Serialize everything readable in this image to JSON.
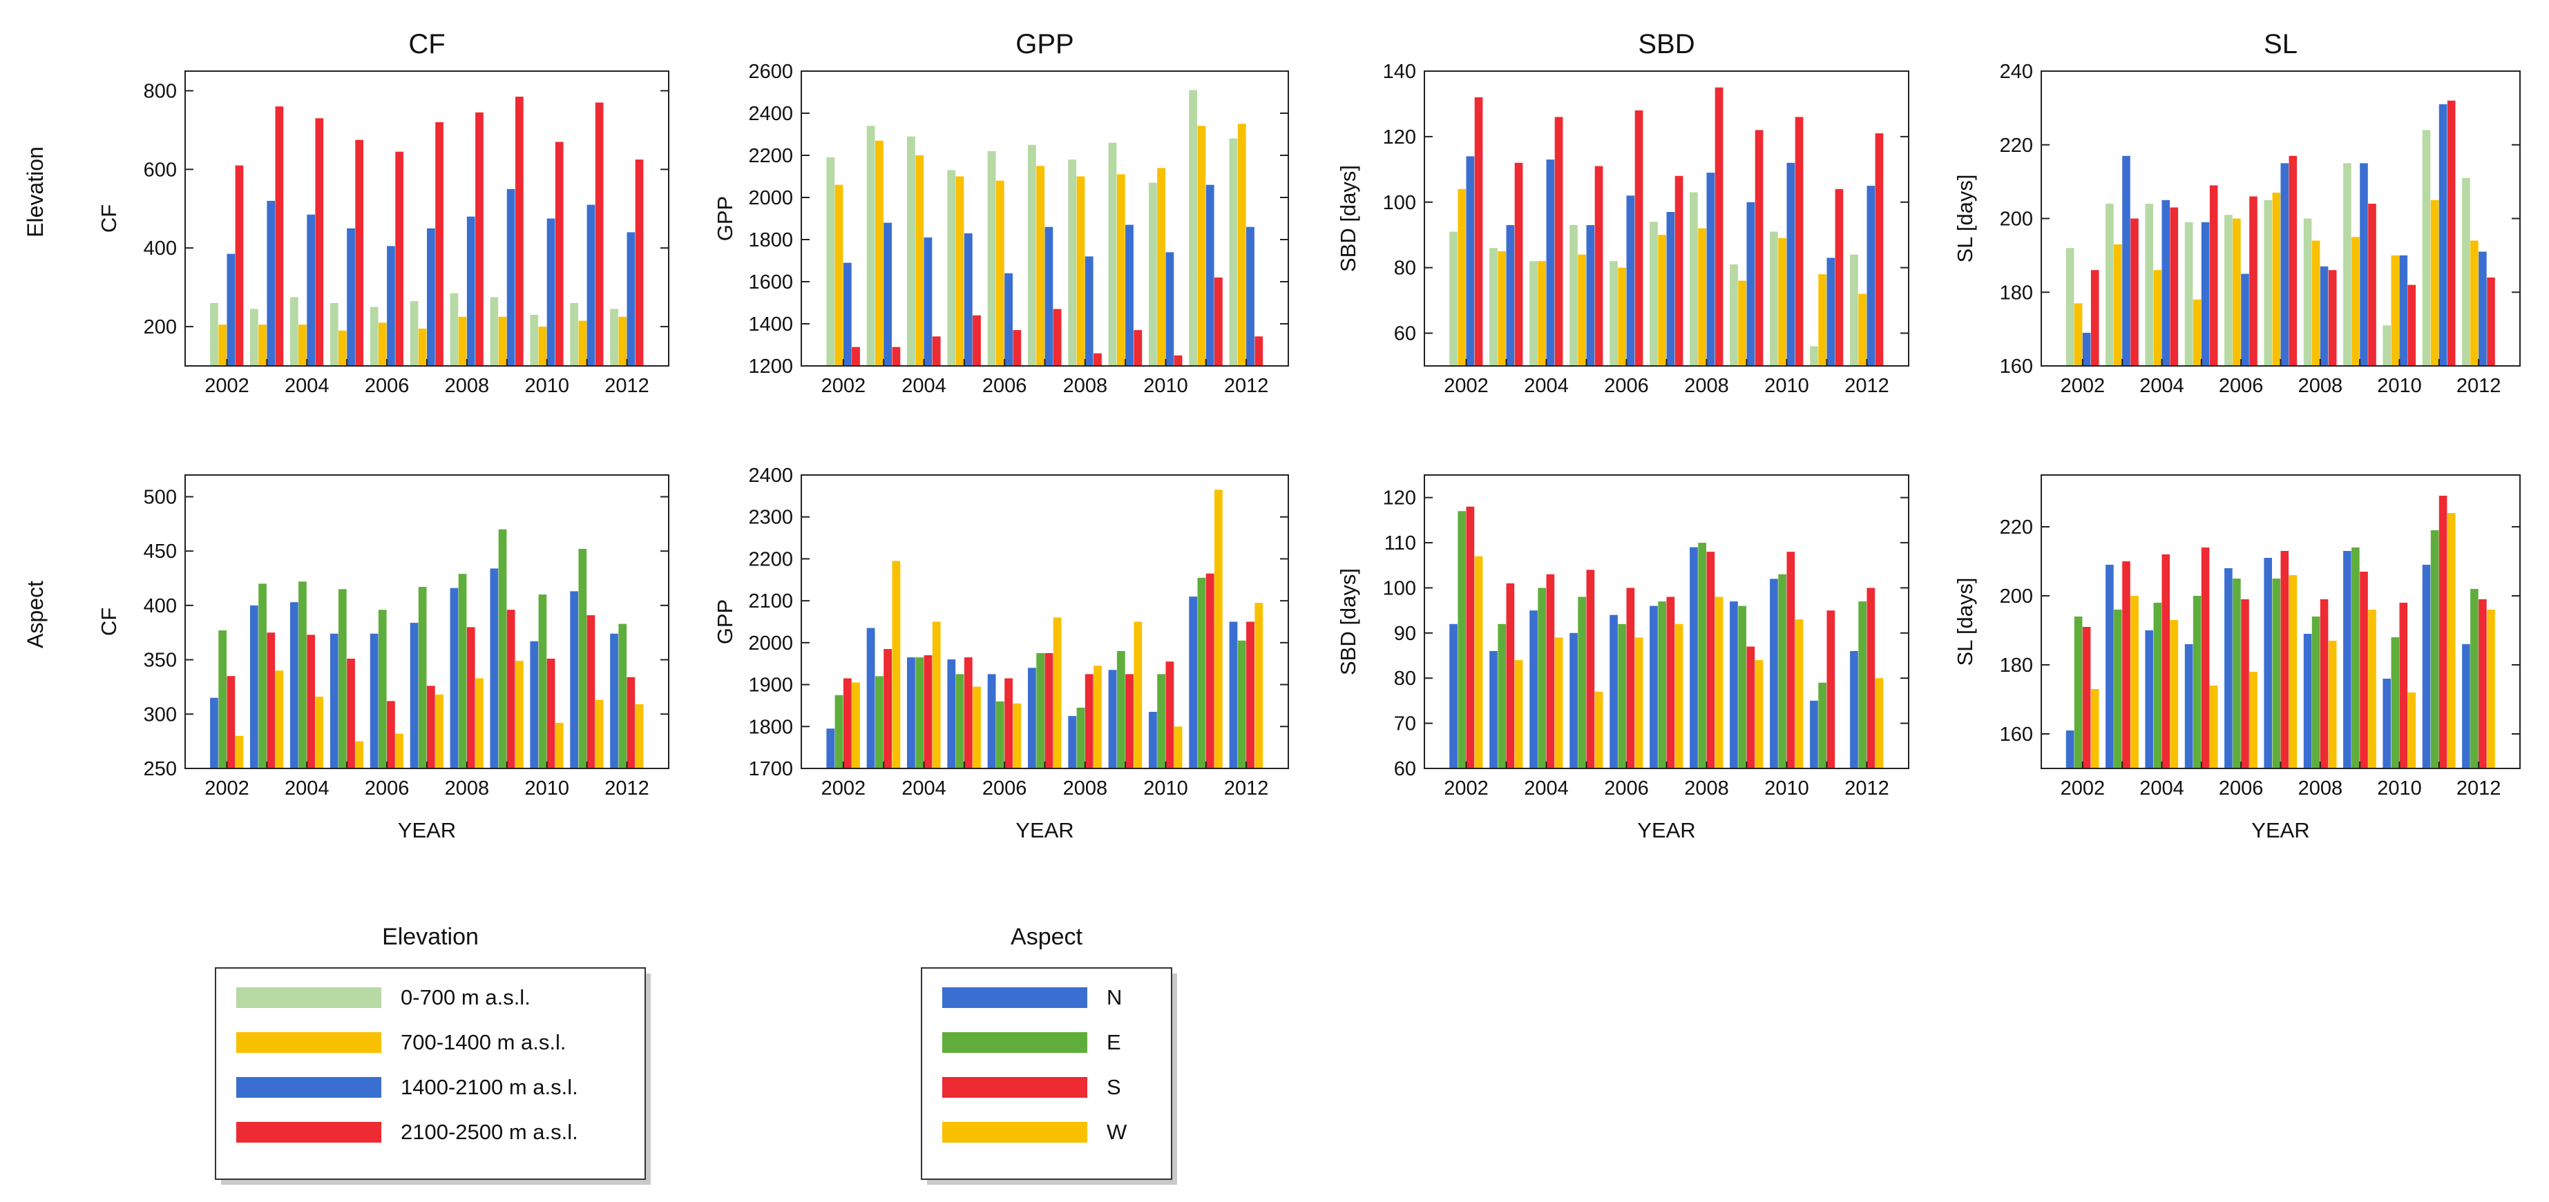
{
  "figure": {
    "row_labels": [
      "Elevation",
      "Aspect"
    ],
    "x_axis_label": "YEAR"
  },
  "legends": [
    {
      "title": "Elevation",
      "items": [
        {
          "label": "0-700 m a.s.l.",
          "color": "#b7d9a4"
        },
        {
          "label": "700-1400 m a.s.l.",
          "color": "#f9c000"
        },
        {
          "label": "1400-2100 m a.s.l.",
          "color": "#3a6fd1"
        },
        {
          "label": "2100-2500 m a.s.l.",
          "color": "#ee2a32"
        }
      ]
    },
    {
      "title": "Aspect",
      "items": [
        {
          "label": "N",
          "color": "#3a6fd1"
        },
        {
          "label": "E",
          "color": "#5fae3c"
        },
        {
          "label": "S",
          "color": "#ee2a32"
        },
        {
          "label": "W",
          "color": "#f9c000"
        }
      ]
    }
  ],
  "chart_data": [
    {
      "id": "elev-cf",
      "type": "bar",
      "title": "CF",
      "ylabel": "CF",
      "xlabel": "",
      "ylim": [
        100,
        850
      ],
      "yticks": [
        200,
        400,
        600,
        800
      ],
      "categories": [
        2002,
        2003,
        2004,
        2005,
        2006,
        2007,
        2008,
        2009,
        2010,
        2011,
        2012
      ],
      "xtick_labels": [
        "2002",
        "2004",
        "2006",
        "2008",
        "2010",
        "2012"
      ],
      "series": [
        {
          "name": "0-700 m a.s.l.",
          "color": "#b7d9a4",
          "values": [
            260,
            245,
            275,
            260,
            250,
            265,
            285,
            275,
            230,
            260,
            245
          ]
        },
        {
          "name": "700-1400 m a.s.l.",
          "color": "#f9c000",
          "values": [
            205,
            205,
            205,
            190,
            210,
            195,
            225,
            225,
            200,
            215,
            225
          ]
        },
        {
          "name": "1400-2100 m a.s.l.",
          "color": "#3a6fd1",
          "values": [
            385,
            520,
            485,
            450,
            405,
            450,
            480,
            550,
            475,
            510,
            440
          ]
        },
        {
          "name": "2100-2500 m a.s.l.",
          "color": "#ee2a32",
          "values": [
            610,
            760,
            730,
            675,
            645,
            720,
            745,
            785,
            670,
            770,
            625
          ]
        }
      ]
    },
    {
      "id": "elev-gpp",
      "type": "bar",
      "title": "GPP",
      "ylabel": "GPP",
      "xlabel": "",
      "ylim": [
        1200,
        2600
      ],
      "yticks": [
        1200,
        1400,
        1600,
        1800,
        2000,
        2200,
        2400,
        2600
      ],
      "categories": [
        2002,
        2003,
        2004,
        2005,
        2006,
        2007,
        2008,
        2009,
        2010,
        2011,
        2012
      ],
      "xtick_labels": [
        "2002",
        "2004",
        "2006",
        "2008",
        "2010",
        "2012"
      ],
      "series": [
        {
          "name": "0-700 m a.s.l.",
          "color": "#b7d9a4",
          "values": [
            2190,
            2340,
            2290,
            2130,
            2220,
            2250,
            2180,
            2260,
            2070,
            2510,
            2280
          ]
        },
        {
          "name": "700-1400 m a.s.l.",
          "color": "#f9c000",
          "values": [
            2060,
            2270,
            2200,
            2100,
            2080,
            2150,
            2100,
            2110,
            2140,
            2340,
            2350
          ]
        },
        {
          "name": "1400-2100 m a.s.l.",
          "color": "#3a6fd1",
          "values": [
            1690,
            1880,
            1810,
            1830,
            1640,
            1860,
            1720,
            1870,
            1740,
            2060,
            1860
          ]
        },
        {
          "name": "2100-2500 m a.s.l.",
          "color": "#ee2a32",
          "values": [
            1290,
            1290,
            1340,
            1440,
            1370,
            1470,
            1260,
            1370,
            1250,
            1620,
            1340
          ]
        }
      ]
    },
    {
      "id": "elev-sbd",
      "type": "bar",
      "title": "SBD",
      "ylabel": "SBD [days]",
      "xlabel": "",
      "ylim": [
        50,
        140
      ],
      "yticks": [
        60,
        80,
        100,
        120,
        140
      ],
      "categories": [
        2002,
        2003,
        2004,
        2005,
        2006,
        2007,
        2008,
        2009,
        2010,
        2011,
        2012
      ],
      "xtick_labels": [
        "2002",
        "2004",
        "2006",
        "2008",
        "2010",
        "2012"
      ],
      "series": [
        {
          "name": "0-700 m a.s.l.",
          "color": "#b7d9a4",
          "values": [
            91,
            86,
            82,
            93,
            82,
            94,
            103,
            81,
            91,
            56,
            84
          ]
        },
        {
          "name": "700-1400 m a.s.l.",
          "color": "#f9c000",
          "values": [
            104,
            85,
            82,
            84,
            80,
            90,
            92,
            76,
            89,
            78,
            72
          ]
        },
        {
          "name": "1400-2100 m a.s.l.",
          "color": "#3a6fd1",
          "values": [
            114,
            93,
            113,
            93,
            102,
            97,
            109,
            100,
            112,
            83,
            105
          ]
        },
        {
          "name": "2100-2500 m a.s.l.",
          "color": "#ee2a32",
          "values": [
            132,
            112,
            126,
            111,
            128,
            108,
            135,
            122,
            126,
            104,
            121
          ]
        }
      ]
    },
    {
      "id": "elev-sl",
      "type": "bar",
      "title": "SL",
      "ylabel": "SL [days]",
      "xlabel": "",
      "ylim": [
        160,
        240
      ],
      "yticks": [
        160,
        180,
        200,
        220,
        240
      ],
      "categories": [
        2002,
        2003,
        2004,
        2005,
        2006,
        2007,
        2008,
        2009,
        2010,
        2011,
        2012
      ],
      "xtick_labels": [
        "2002",
        "2004",
        "2006",
        "2008",
        "2010",
        "2012"
      ],
      "series": [
        {
          "name": "0-700 m a.s.l.",
          "color": "#b7d9a4",
          "values": [
            192,
            204,
            204,
            199,
            201,
            205,
            200,
            215,
            171,
            224,
            211
          ]
        },
        {
          "name": "700-1400 m a.s.l.",
          "color": "#f9c000",
          "values": [
            177,
            193,
            186,
            178,
            200,
            207,
            194,
            195,
            190,
            205,
            194
          ]
        },
        {
          "name": "1400-2100 m a.s.l.",
          "color": "#3a6fd1",
          "values": [
            169,
            217,
            205,
            199,
            185,
            215,
            187,
            215,
            190,
            231,
            191
          ]
        },
        {
          "name": "2100-2500 m a.s.l.",
          "color": "#ee2a32",
          "values": [
            186,
            200,
            203,
            209,
            206,
            217,
            186,
            204,
            182,
            232,
            184
          ]
        }
      ]
    },
    {
      "id": "asp-cf",
      "type": "bar",
      "title": "",
      "ylabel": "CF",
      "xlabel": "YEAR",
      "ylim": [
        250,
        520
      ],
      "yticks": [
        250,
        300,
        350,
        400,
        450,
        500
      ],
      "categories": [
        2002,
        2003,
        2004,
        2005,
        2006,
        2007,
        2008,
        2009,
        2010,
        2011,
        2012
      ],
      "xtick_labels": [
        "2002",
        "2004",
        "2006",
        "2008",
        "2010",
        "2012"
      ],
      "series": [
        {
          "name": "N",
          "color": "#3a6fd1",
          "values": [
            315,
            400,
            403,
            374,
            374,
            384,
            416,
            434,
            367,
            413,
            374
          ]
        },
        {
          "name": "E",
          "color": "#5fae3c",
          "values": [
            377,
            420,
            422,
            415,
            396,
            417,
            429,
            470,
            410,
            452,
            383
          ]
        },
        {
          "name": "S",
          "color": "#ee2a32",
          "values": [
            335,
            375,
            373,
            351,
            312,
            326,
            380,
            396,
            351,
            391,
            334
          ]
        },
        {
          "name": "W",
          "color": "#f9c000",
          "values": [
            280,
            340,
            316,
            275,
            282,
            318,
            333,
            349,
            292,
            313,
            309
          ]
        }
      ]
    },
    {
      "id": "asp-gpp",
      "type": "bar",
      "title": "",
      "ylabel": "GPP",
      "xlabel": "YEAR",
      "ylim": [
        1700,
        2400
      ],
      "yticks": [
        1700,
        1800,
        1900,
        2000,
        2100,
        2200,
        2300,
        2400
      ],
      "categories": [
        2002,
        2003,
        2004,
        2005,
        2006,
        2007,
        2008,
        2009,
        2010,
        2011,
        2012
      ],
      "xtick_labels": [
        "2002",
        "2004",
        "2006",
        "2008",
        "2010",
        "2012"
      ],
      "series": [
        {
          "name": "N",
          "color": "#3a6fd1",
          "values": [
            1795,
            2035,
            1965,
            1960,
            1925,
            1940,
            1825,
            1935,
            1835,
            2110,
            2050
          ]
        },
        {
          "name": "E",
          "color": "#5fae3c",
          "values": [
            1875,
            1920,
            1965,
            1925,
            1860,
            1975,
            1845,
            1980,
            1925,
            2155,
            2005
          ]
        },
        {
          "name": "S",
          "color": "#ee2a32",
          "values": [
            1915,
            1985,
            1970,
            1965,
            1915,
            1975,
            1925,
            1925,
            1955,
            2165,
            2050
          ]
        },
        {
          "name": "W",
          "color": "#f9c000",
          "values": [
            1905,
            2195,
            2050,
            1895,
            1855,
            2060,
            1945,
            2050,
            1800,
            2365,
            2095
          ]
        }
      ]
    },
    {
      "id": "asp-sbd",
      "type": "bar",
      "title": "",
      "ylabel": "SBD [days]",
      "xlabel": "YEAR",
      "ylim": [
        60,
        125
      ],
      "yticks": [
        60,
        70,
        80,
        90,
        100,
        110,
        120
      ],
      "categories": [
        2002,
        2003,
        2004,
        2005,
        2006,
        2007,
        2008,
        2009,
        2010,
        2011,
        2012
      ],
      "xtick_labels": [
        "2002",
        "2004",
        "2006",
        "2008",
        "2010",
        "2012"
      ],
      "series": [
        {
          "name": "N",
          "color": "#3a6fd1",
          "values": [
            92,
            86,
            95,
            90,
            94,
            96,
            109,
            97,
            102,
            75,
            86
          ]
        },
        {
          "name": "E",
          "color": "#5fae3c",
          "values": [
            117,
            92,
            100,
            98,
            92,
            97,
            110,
            96,
            103,
            79,
            97
          ]
        },
        {
          "name": "S",
          "color": "#ee2a32",
          "values": [
            118,
            101,
            103,
            104,
            100,
            98,
            108,
            87,
            108,
            95,
            100
          ]
        },
        {
          "name": "W",
          "color": "#f9c000",
          "values": [
            107,
            84,
            89,
            77,
            89,
            92,
            98,
            84,
            93,
            60,
            80
          ]
        }
      ]
    },
    {
      "id": "asp-sl",
      "type": "bar",
      "title": "",
      "ylabel": "SL [days]",
      "xlabel": "YEAR",
      "ylim": [
        150,
        235
      ],
      "yticks": [
        160,
        180,
        200,
        220
      ],
      "categories": [
        2002,
        2003,
        2004,
        2005,
        2006,
        2007,
        2008,
        2009,
        2010,
        2011,
        2012
      ],
      "xtick_labels": [
        "2002",
        "2004",
        "2006",
        "2008",
        "2010",
        "2012"
      ],
      "series": [
        {
          "name": "N",
          "color": "#3a6fd1",
          "values": [
            161,
            209,
            190,
            186,
            208,
            211,
            189,
            213,
            176,
            209,
            186
          ]
        },
        {
          "name": "E",
          "color": "#5fae3c",
          "values": [
            194,
            196,
            198,
            200,
            205,
            205,
            194,
            214,
            188,
            219,
            202
          ]
        },
        {
          "name": "S",
          "color": "#ee2a32",
          "values": [
            191,
            210,
            212,
            214,
            199,
            213,
            199,
            207,
            198,
            229,
            199
          ]
        },
        {
          "name": "W",
          "color": "#f9c000",
          "values": [
            173,
            200,
            193,
            174,
            178,
            206,
            187,
            196,
            172,
            224,
            196
          ]
        }
      ]
    }
  ]
}
